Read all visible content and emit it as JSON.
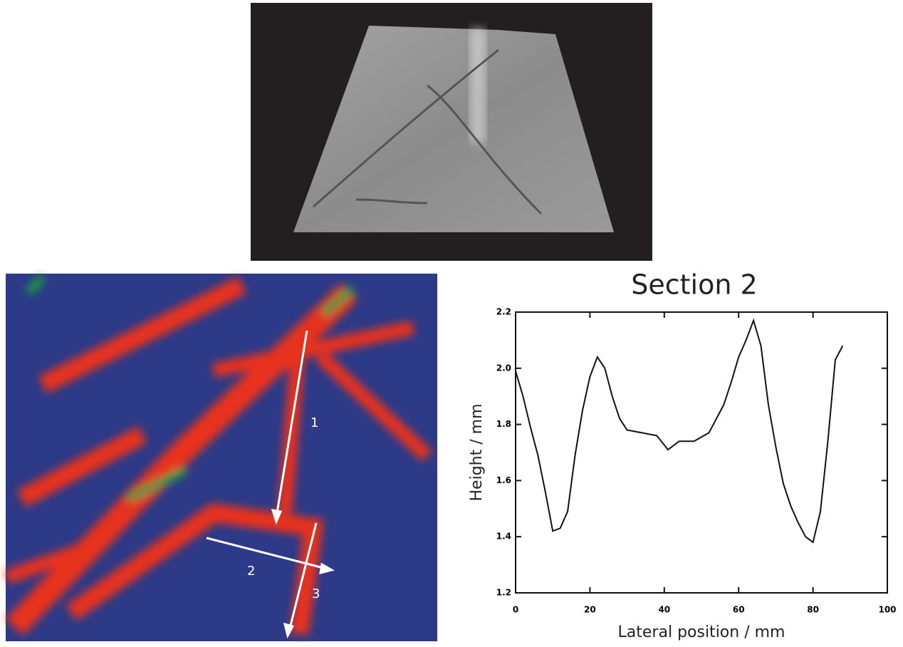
{
  "figure": {
    "section_labels": [
      "1",
      "2",
      "3"
    ]
  },
  "chart_data": {
    "type": "line",
    "title": "Section 2",
    "x_label": "Lateral position / mm",
    "y_label": "Height / mm",
    "x": [
      0,
      2,
      4,
      6,
      8,
      10,
      12,
      14,
      16,
      18,
      20,
      22,
      24,
      26,
      28,
      30,
      34,
      38,
      41,
      44,
      48,
      52,
      56,
      58,
      60,
      62,
      64,
      66,
      68,
      70,
      72,
      74,
      76,
      78,
      80,
      82,
      84,
      86,
      88
    ],
    "series": [
      {
        "name": "Section 2",
        "color": "#111111",
        "values": [
          1.99,
          1.9,
          1.79,
          1.69,
          1.56,
          1.42,
          1.43,
          1.49,
          1.69,
          1.85,
          1.97,
          2.04,
          2.0,
          1.9,
          1.82,
          1.78,
          1.77,
          1.76,
          1.71,
          1.74,
          1.74,
          1.77,
          1.87,
          1.95,
          2.04,
          2.1,
          2.17,
          2.08,
          1.87,
          1.72,
          1.59,
          1.51,
          1.45,
          1.4,
          1.38,
          1.49,
          1.74,
          2.03,
          2.08
        ]
      }
    ],
    "xlim": [
      0,
      100
    ],
    "xticks": [
      0,
      20,
      40,
      60,
      80,
      100
    ],
    "ylim": [
      1.2,
      2.2
    ],
    "yticks": [
      1.2,
      1.4,
      1.6,
      1.8,
      {
        "value": 2.0,
        "label": "2.0"
      },
      2.2
    ]
  }
}
